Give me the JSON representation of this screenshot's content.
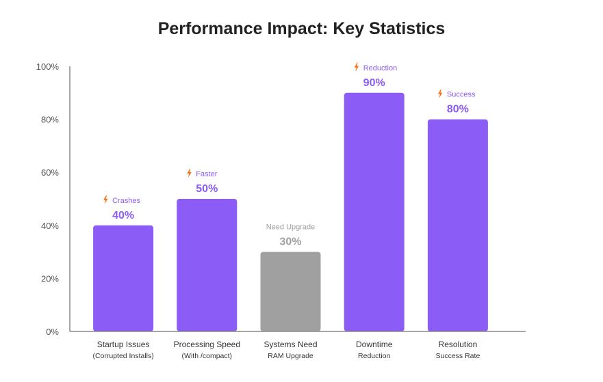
{
  "chart_data": {
    "type": "bar",
    "title": "Performance Impact: Key Statistics",
    "categories": [
      {
        "line1": "Startup Issues",
        "line2": "(Corrupted Installs)"
      },
      {
        "line1": "Processing Speed",
        "line2": "(With /compact)"
      },
      {
        "line1": "Systems Need",
        "line2": "RAM Upgrade"
      },
      {
        "line1": "Downtime",
        "line2": "Reduction"
      },
      {
        "line1": "Resolution",
        "line2": "Success Rate"
      }
    ],
    "values": [
      40,
      50,
      30,
      90,
      80
    ],
    "value_labels": [
      "40%",
      "50%",
      "30%",
      "90%",
      "80%"
    ],
    "annotations": [
      {
        "text": "Crashes",
        "icon": "lightning-icon"
      },
      {
        "text": "Faster",
        "icon": "lightning-icon"
      },
      {
        "text": "Need Upgrade",
        "icon": ""
      },
      {
        "text": "Reduction",
        "icon": "lightning-icon"
      },
      {
        "text": "Success",
        "icon": "lightning-icon"
      }
    ],
    "bar_colors": [
      "#8b5cf6",
      "#8b5cf6",
      "#a0a0a0",
      "#8b5cf6",
      "#8b5cf6"
    ],
    "label_colors": [
      "#8b5cf6",
      "#8b5cf6",
      "#a0a0a0",
      "#8b5cf6",
      "#8b5cf6"
    ],
    "icon_color": "#f97316",
    "ylim": [
      0,
      100
    ],
    "yticks": [
      "0%",
      "20%",
      "40%",
      "60%",
      "80%",
      "100%"
    ],
    "grid": false,
    "xlabel": "",
    "ylabel": ""
  }
}
